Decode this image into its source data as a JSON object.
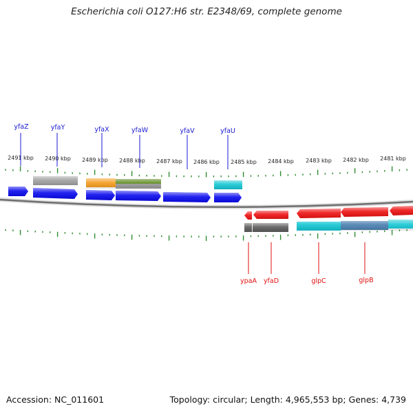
{
  "title": "Escherichia coli O127:H6 str. E2348/69, complete genome",
  "footer": {
    "accession": "Accession: NC_011601",
    "summary": "Topology: circular; Length: 4,965,553 bp; Genes: 4,739"
  },
  "colors": {
    "tick": "#2e8b2e",
    "forward_label": "#1a1ad0",
    "reverse_label": "#e01010",
    "backbone": "#777777",
    "blue": "#0a0aee",
    "red": "#ee1111",
    "gray": "#9a9a9a",
    "dark_gray": "#555555",
    "orange": "#f39a1a",
    "olive": "#5d8a1f",
    "cyan": "#13c6d3",
    "steel_blue": "#4a7fb0"
  },
  "scale_labels": [
    "2491 kbp",
    "2490 kbp",
    "2489 kbp",
    "2488 kbp",
    "2487 kbp",
    "2486 kbp",
    "2485 kbp",
    "2484 kbp",
    "2483 kbp",
    "2482 kbp",
    "2481 kbp"
  ],
  "forward_genes": [
    {
      "name": "yfaZ"
    },
    {
      "name": "yfaY"
    },
    {
      "name": "yfaX"
    },
    {
      "name": "yfaW"
    },
    {
      "name": "yfaV"
    },
    {
      "name": "yfaU"
    }
  ],
  "reverse_genes": [
    {
      "name": "ypaA"
    },
    {
      "name": "yfaD"
    },
    {
      "name": "glpC"
    },
    {
      "name": "glpB"
    }
  ]
}
